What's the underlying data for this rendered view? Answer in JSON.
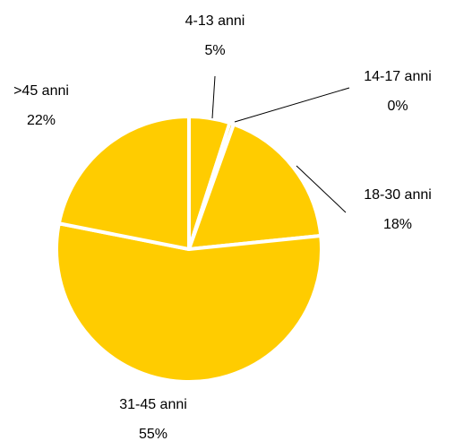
{
  "chart_data": {
    "type": "pie",
    "slices": [
      {
        "label": "4-13 anni",
        "value_label": "5%",
        "value": 5
      },
      {
        "label": "14-17 anni",
        "value_label": "0%",
        "value": 0.5
      },
      {
        "label": "18-30 anni",
        "value_label": "18%",
        "value": 18
      },
      {
        "label": "31-45 anni",
        "value_label": "55%",
        "value": 55
      },
      {
        "label": ">45 anni",
        "value_label": "22%",
        "value": 22
      }
    ],
    "colors": {
      "fill": "#FFCC00",
      "separator": "#FFFFFF",
      "leader": "#000000"
    }
  }
}
